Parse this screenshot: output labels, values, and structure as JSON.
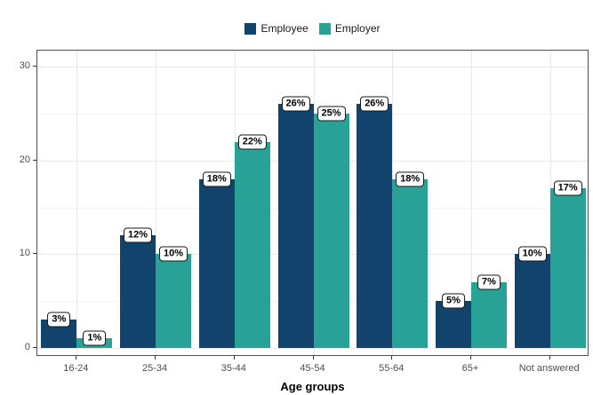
{
  "chart_data": {
    "type": "bar",
    "title": "",
    "xlabel": "Age groups",
    "ylabel": "",
    "categories": [
      "16-24",
      "25-34",
      "35-44",
      "45-54",
      "55-64",
      "65+",
      "Not answered"
    ],
    "series": [
      {
        "name": "Employee",
        "color": "#12436D",
        "values": [
          3,
          12,
          18,
          26,
          26,
          5,
          10
        ],
        "labels": [
          "3%",
          "12%",
          "18%",
          "26%",
          "26%",
          "5%",
          "10%"
        ]
      },
      {
        "name": "Employer",
        "color": "#28A197",
        "values": [
          1,
          10,
          22,
          25,
          18,
          7,
          17
        ],
        "labels": [
          "1%",
          "10%",
          "22%",
          "25%",
          "18%",
          "7%",
          "17%"
        ]
      }
    ],
    "ylim": [
      0,
      31.7
    ],
    "yticks": [
      0,
      10,
      20,
      30
    ],
    "yticks_minor": [
      5,
      15,
      25
    ],
    "grid": "on",
    "legend_position": "top"
  },
  "theme": {
    "panel_border": "#4f4f4f",
    "grid_major": "#e8e8e8",
    "grid_minor": "#f4f4f4",
    "tick_label_color": "#4d4d4d",
    "label_box_bg": "#ffffff",
    "label_box_border": "#1a1a1a",
    "background": "#ffffff"
  }
}
